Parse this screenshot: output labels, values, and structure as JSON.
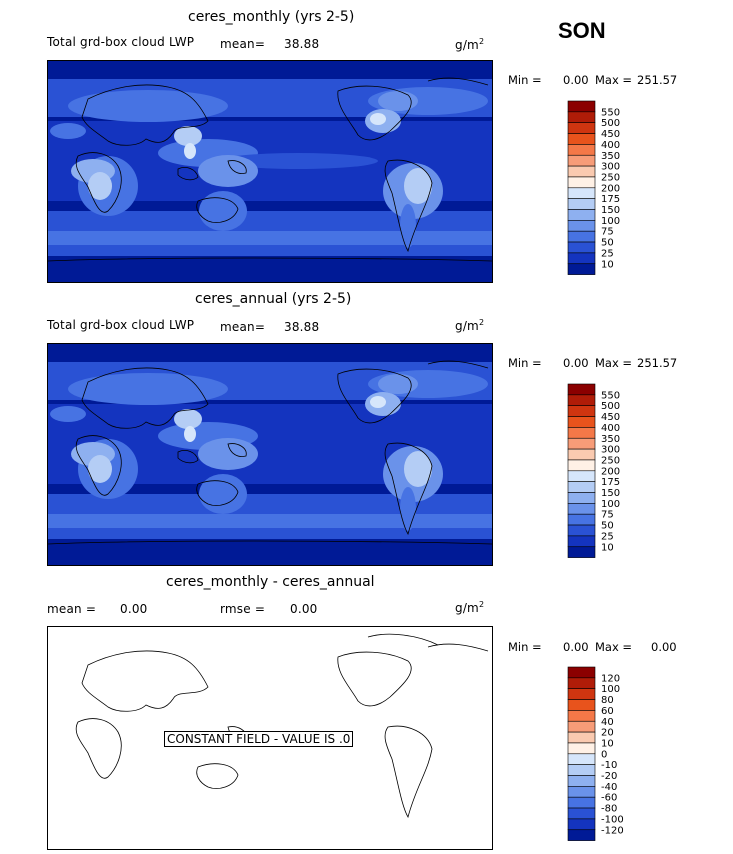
{
  "season_label": "SON",
  "panels": [
    {
      "title": "ceres_monthly (yrs 2-5)",
      "left_label": "Total grd-box cloud LWP",
      "mean_label": "mean=",
      "mean_value": "38.88",
      "units": "g/m",
      "units_exp": "2",
      "min_label": "Min =",
      "min_value": "0.00",
      "max_label": "Max =",
      "max_value": "251.57",
      "colorbar": {
        "labels": [
          "550",
          "500",
          "450",
          "400",
          "350",
          "300",
          "250",
          "200",
          "175",
          "150",
          "100",
          "75",
          "50",
          "25",
          "10"
        ],
        "colors": [
          "#8b0000",
          "#b01c08",
          "#cf3510",
          "#e8531c",
          "#f47848",
          "#f79c78",
          "#facab0",
          "#fff1e6",
          "#d6e6fb",
          "#b4cdf5",
          "#8eb0f0",
          "#6a92ea",
          "#4773e3",
          "#2a52d4",
          "#1434bf",
          "#001a96"
        ]
      },
      "map_palette": [
        "#001a96",
        "#1434bf",
        "#2a52d4",
        "#4773e3",
        "#6a92ea",
        "#8eb0f0",
        "#b4cdf5",
        "#d6e6fb"
      ]
    },
    {
      "title": "ceres_annual (yrs 2-5)",
      "left_label": "Total grd-box cloud LWP",
      "mean_label": "mean=",
      "mean_value": "38.88",
      "units": "g/m",
      "units_exp": "2",
      "min_label": "Min =",
      "min_value": "0.00",
      "max_label": "Max =",
      "max_value": "251.57",
      "colorbar": {
        "labels": [
          "550",
          "500",
          "450",
          "400",
          "350",
          "300",
          "250",
          "200",
          "175",
          "150",
          "100",
          "75",
          "50",
          "25",
          "10"
        ],
        "colors": [
          "#8b0000",
          "#b01c08",
          "#cf3510",
          "#e8531c",
          "#f47848",
          "#f79c78",
          "#facab0",
          "#fff1e6",
          "#d6e6fb",
          "#b4cdf5",
          "#8eb0f0",
          "#6a92ea",
          "#4773e3",
          "#2a52d4",
          "#1434bf",
          "#001a96"
        ]
      }
    },
    {
      "title": "ceres_monthly - ceres_annual",
      "mean_label": "mean =",
      "mean_value": "0.00",
      "rmse_label": "rmse =",
      "rmse_value": "0.00",
      "units": "g/m",
      "units_exp": "2",
      "min_label": "Min =",
      "min_value": "0.00",
      "max_label": "Max =",
      "max_value": "0.00",
      "constant_field_text": "CONSTANT FIELD - VALUE IS .0",
      "colorbar": {
        "labels": [
          "120",
          "100",
          "80",
          "60",
          "40",
          "20",
          "10",
          "0",
          "-10",
          "-20",
          "-40",
          "-60",
          "-80",
          "-100",
          "-120"
        ],
        "colors": [
          "#8b0000",
          "#b01c08",
          "#cf3510",
          "#e8531c",
          "#f47848",
          "#f79c78",
          "#facab0",
          "#fff1e6",
          "#d6e6fb",
          "#b4cdf5",
          "#8eb0f0",
          "#6a92ea",
          "#4773e3",
          "#2a52d4",
          "#1434bf",
          "#001a96"
        ]
      }
    }
  ],
  "chart_data": [
    {
      "type": "heatmap",
      "title": "ceres_monthly (yrs 2-5)",
      "variable": "Total grd-box cloud LWP",
      "units": "g/m2",
      "mean": 38.88,
      "min": 0.0,
      "max": 251.57,
      "contour_levels": [
        10,
        25,
        50,
        75,
        100,
        150,
        175,
        200,
        250,
        300,
        350,
        400,
        450,
        500,
        550
      ]
    },
    {
      "type": "heatmap",
      "title": "ceres_annual (yrs 2-5)",
      "variable": "Total grd-box cloud LWP",
      "units": "g/m2",
      "mean": 38.88,
      "min": 0.0,
      "max": 251.57,
      "contour_levels": [
        10,
        25,
        50,
        75,
        100,
        150,
        175,
        200,
        250,
        300,
        350,
        400,
        450,
        500,
        550
      ]
    },
    {
      "type": "heatmap",
      "title": "ceres_monthly - ceres_annual",
      "units": "g/m2",
      "mean": 0.0,
      "rmse": 0.0,
      "min": 0.0,
      "max": 0.0,
      "contour_levels": [
        -120,
        -100,
        -80,
        -60,
        -40,
        -20,
        -10,
        0,
        10,
        20,
        40,
        60,
        80,
        100,
        120
      ],
      "annotation": "CONSTANT FIELD - VALUE IS .0"
    }
  ]
}
